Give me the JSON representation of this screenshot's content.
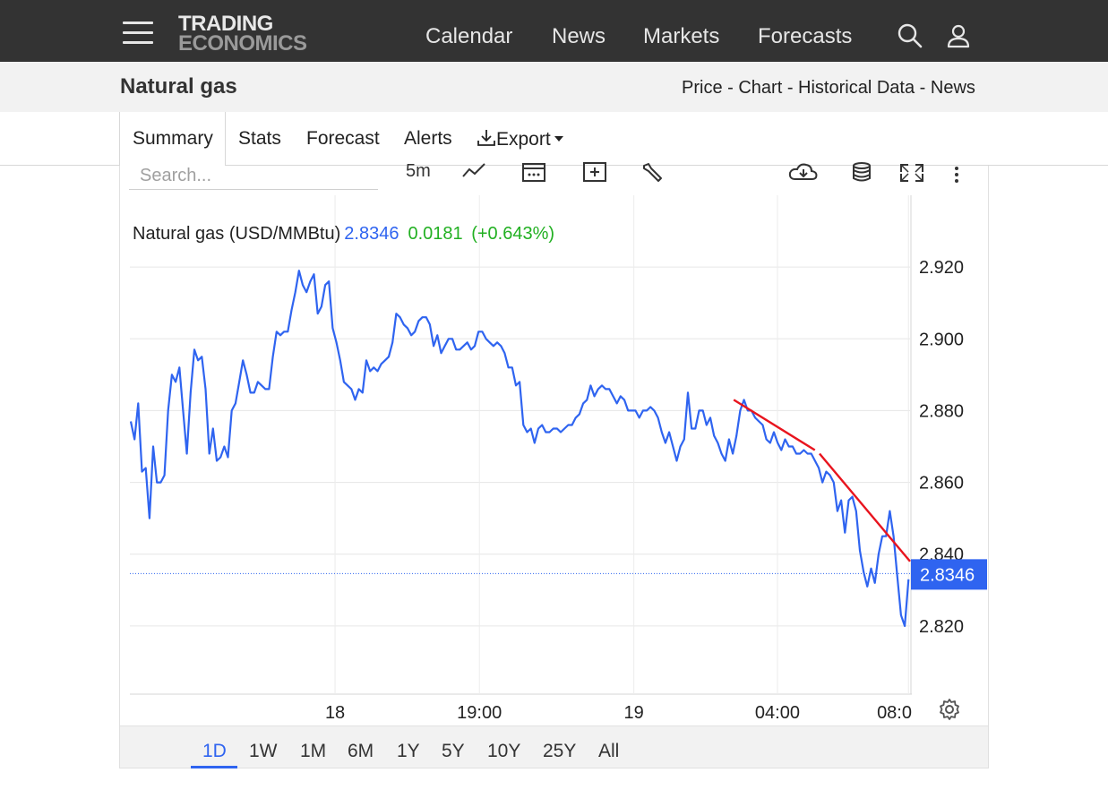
{
  "topbar": {
    "logo_line1": "TRADING",
    "logo_line2": "ECONOMICS",
    "nav": [
      "Calendar",
      "News",
      "Markets",
      "Forecasts"
    ]
  },
  "header": {
    "title": "Natural gas",
    "links": [
      "Price",
      "Chart",
      "Historical Data",
      "News"
    ],
    "separator": " - "
  },
  "tabs": [
    "Summary",
    "Stats",
    "Forecast",
    "Alerts",
    "Export"
  ],
  "toolbar": {
    "search_placeholder": "Search...",
    "interval": "5m"
  },
  "legend": {
    "name": "Natural gas (USD/MMBtu)",
    "price": "2.8346",
    "change": "0.0181",
    "change_pct": "(+0.643%)"
  },
  "ranges": [
    "1D",
    "1W",
    "1M",
    "6M",
    "1Y",
    "5Y",
    "10Y",
    "25Y",
    "All"
  ],
  "active_range": "1D",
  "colors": {
    "line": "#2f64f0",
    "trendline": "#e8141e",
    "positive": "#22b022",
    "price_tag": "#2f64f0"
  },
  "chart_data": {
    "type": "line",
    "title": "",
    "xlabel": "",
    "ylabel": "",
    "ylim": [
      2.801,
      2.94
    ],
    "y_ticks": [
      2.92,
      2.9,
      2.88,
      2.86,
      2.84,
      2.82
    ],
    "y_tick_labels": [
      "2.920",
      "2.900",
      "2.880",
      "2.860",
      "2.840",
      "2.820"
    ],
    "x_ticks": [
      {
        "label": "18",
        "pos": 0.263
      },
      {
        "label": "19:00",
        "pos": 0.448
      },
      {
        "label": "19",
        "pos": 0.646
      },
      {
        "label": "04:00",
        "pos": 0.83
      },
      {
        "label": "08:0",
        "pos": 0.998
      }
    ],
    "last_price": 2.8346,
    "last_price_label": "2.8346",
    "grid": true,
    "series": [
      {
        "values": [
          2.877,
          2.872,
          2.882,
          2.863,
          2.864,
          2.85,
          2.87,
          2.86,
          2.86,
          2.862,
          2.88,
          2.89,
          2.888,
          2.892,
          2.88,
          2.868,
          2.885,
          2.897,
          2.894,
          2.895,
          2.886,
          2.868,
          2.875,
          2.866,
          2.867,
          2.87,
          2.867,
          2.88,
          2.882,
          2.888,
          2.894,
          2.89,
          2.885,
          2.885,
          2.888,
          2.887,
          2.886,
          2.886,
          2.895,
          2.902,
          2.901,
          2.902,
          2.902,
          2.908,
          2.913,
          2.919,
          2.915,
          2.913,
          2.916,
          2.918,
          2.907,
          2.909,
          2.915,
          2.916,
          2.903,
          2.899,
          2.894,
          2.888,
          2.887,
          2.886,
          2.883,
          2.886,
          2.885,
          2.894,
          2.891,
          2.892,
          2.891,
          2.893,
          2.894,
          2.895,
          2.899,
          2.907,
          2.906,
          2.904,
          2.903,
          2.901,
          2.902,
          2.905,
          2.906,
          2.906,
          2.904,
          2.898,
          2.901,
          2.896,
          2.898,
          2.9,
          2.9,
          2.897,
          2.897,
          2.898,
          2.899,
          2.897,
          2.898,
          2.902,
          2.902,
          2.9,
          2.899,
          2.898,
          2.899,
          2.898,
          2.896,
          2.892,
          2.892,
          2.887,
          2.888,
          2.876,
          2.874,
          2.875,
          2.871,
          2.875,
          2.876,
          2.874,
          2.874,
          2.875,
          2.875,
          2.874,
          2.875,
          2.876,
          2.876,
          2.878,
          2.879,
          2.882,
          2.883,
          2.887,
          2.884,
          2.886,
          2.887,
          2.886,
          2.886,
          2.884,
          2.882,
          2.884,
          2.883,
          2.88,
          2.88,
          2.88,
          2.878,
          2.88,
          2.88,
          2.881,
          2.88,
          2.878,
          2.874,
          2.871,
          2.874,
          2.87,
          2.866,
          2.87,
          2.872,
          2.885,
          2.875,
          2.875,
          2.88,
          2.88,
          2.876,
          2.878,
          2.873,
          2.871,
          2.868,
          2.866,
          2.872,
          2.868,
          2.873,
          2.88,
          2.883,
          2.88,
          2.88,
          2.878,
          2.877,
          2.876,
          2.872,
          2.871,
          2.874,
          2.871,
          2.869,
          2.872,
          2.87,
          2.87,
          2.868,
          2.868,
          2.869,
          2.868,
          2.868,
          2.866,
          2.864,
          2.86,
          2.863,
          2.862,
          2.86,
          2.852,
          2.855,
          2.846,
          2.855,
          2.856,
          2.852,
          2.841,
          2.835,
          2.831,
          2.836,
          2.832,
          2.84,
          2.845,
          2.845,
          2.852,
          2.845,
          2.834,
          2.823,
          2.82,
          2.833
        ]
      }
    ],
    "trendlines": [
      {
        "from": {
          "pos": 0.774,
          "y": 2.883
        },
        "to": {
          "pos": 0.878,
          "y": 2.869
        }
      },
      {
        "from": {
          "pos": 0.884,
          "y": 2.868
        },
        "to": {
          "pos": 1.0,
          "y": 2.838
        }
      }
    ]
  }
}
